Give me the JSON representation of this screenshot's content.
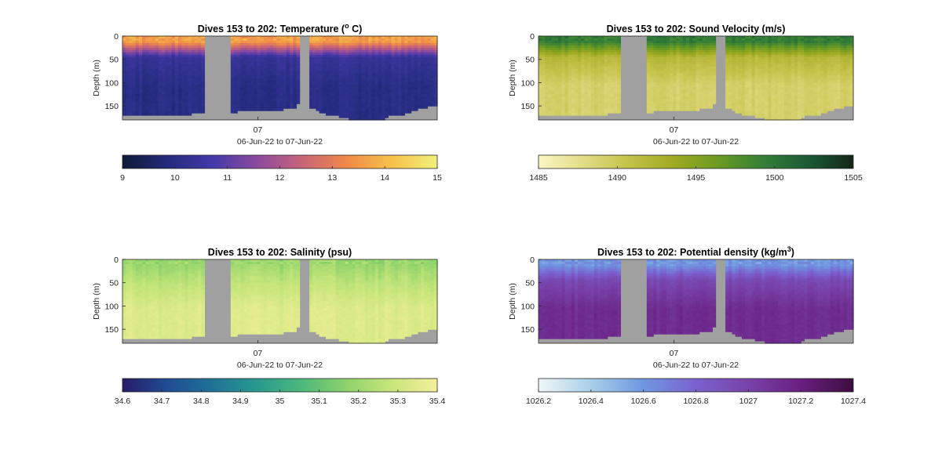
{
  "figure": {
    "background": "#ffffff",
    "gap_color": "#a0a0a0"
  },
  "chart_data": [
    {
      "type": "heatmap",
      "id": "temperature",
      "title_main": "Dives 153 to 202: Temperature (",
      "title_sup": "o",
      "title_end": " C)",
      "ylabel": "Depth (m)",
      "yticks": [
        "0",
        "50",
        "100",
        "150"
      ],
      "ytick_values": [
        0,
        50,
        100,
        150
      ],
      "ylim": [
        0,
        180
      ],
      "xticks": [
        "07"
      ],
      "xlabel": "06-Jun-22 to 07-Jun-22",
      "colorbar": {
        "ticks": [
          "9",
          "10",
          "11",
          "12",
          "13",
          "14",
          "15"
        ],
        "range": [
          9,
          15
        ],
        "colors": [
          "#0d1a35",
          "#232c7d",
          "#4438a8",
          "#8c4a9e",
          "#c86478",
          "#ef8a47",
          "#f7c24a",
          "#f0f07c"
        ]
      },
      "surface_value": 13.6,
      "deep_value": 10.0,
      "mid_value": 10.4
    },
    {
      "type": "heatmap",
      "id": "sound_velocity",
      "title_main": "Dives 153 to 202: Sound Velocity (m/s)",
      "title_sup": "",
      "title_end": "",
      "ylabel": "Depth (m)",
      "yticks": [
        "0",
        "50",
        "100",
        "150"
      ],
      "ytick_values": [
        0,
        50,
        100,
        150
      ],
      "ylim": [
        0,
        180
      ],
      "xticks": [
        "07"
      ],
      "xlabel": "06-Jun-22 to 07-Jun-22",
      "colorbar": {
        "ticks": [
          "1485",
          "1490",
          "1495",
          "1500",
          "1505"
        ],
        "range": [
          1485,
          1505
        ],
        "colors": [
          "#fbf6c4",
          "#e2dc86",
          "#c5c24a",
          "#9faa22",
          "#6b9a22",
          "#347f38",
          "#1a5a35",
          "#142617"
        ]
      },
      "surface_value": 1499.5,
      "deep_value": 1489.2,
      "mid_value": 1492.0
    },
    {
      "type": "heatmap",
      "id": "salinity",
      "title_main": "Dives 153 to 202: Salinity (psu)",
      "title_sup": "",
      "title_end": "",
      "ylabel": "Depth (m)",
      "yticks": [
        "0",
        "50",
        "100",
        "150"
      ],
      "ytick_values": [
        0,
        50,
        100,
        150
      ],
      "ylim": [
        0,
        180
      ],
      "xticks": [
        "07"
      ],
      "xlabel": "06-Jun-22 to 07-Jun-22",
      "colorbar": {
        "ticks": [
          "34.6",
          "34.7",
          "34.8",
          "34.9",
          "35",
          "35.1",
          "35.2",
          "35.3",
          "35.4"
        ],
        "range": [
          34.6,
          35.4
        ],
        "colors": [
          "#291b68",
          "#204c95",
          "#1f7296",
          "#289a8f",
          "#4cb97a",
          "#8fd36c",
          "#c8e67a",
          "#f5ef9c"
        ]
      },
      "surface_value": 35.2,
      "deep_value": 35.34,
      "mid_value": 35.26
    },
    {
      "type": "heatmap",
      "id": "potential_density",
      "title_main": "Dives 153 to 202: Potential density (kg/m",
      "title_sup": "3",
      "title_end": ")",
      "ylabel": "Depth (m)",
      "yticks": [
        "0",
        "50",
        "100",
        "150"
      ],
      "ytick_values": [
        0,
        50,
        100,
        150
      ],
      "ylim": [
        0,
        180
      ],
      "xticks": [
        "07"
      ],
      "xlabel": "06-Jun-22 to 07-Jun-22",
      "colorbar": {
        "ticks": [
          "1026.2",
          "1026.4",
          "1026.6",
          "1026.8",
          "1027",
          "1027.2",
          "1027.4"
        ],
        "range": [
          1026.2,
          1027.4
        ],
        "colors": [
          "#f0f7f7",
          "#a8cfe8",
          "#6f97e0",
          "#7a61cf",
          "#7842a8",
          "#691f80",
          "#3d0d3f"
        ]
      },
      "surface_value": 1026.6,
      "deep_value": 1027.12,
      "mid_value": 1026.95
    }
  ]
}
